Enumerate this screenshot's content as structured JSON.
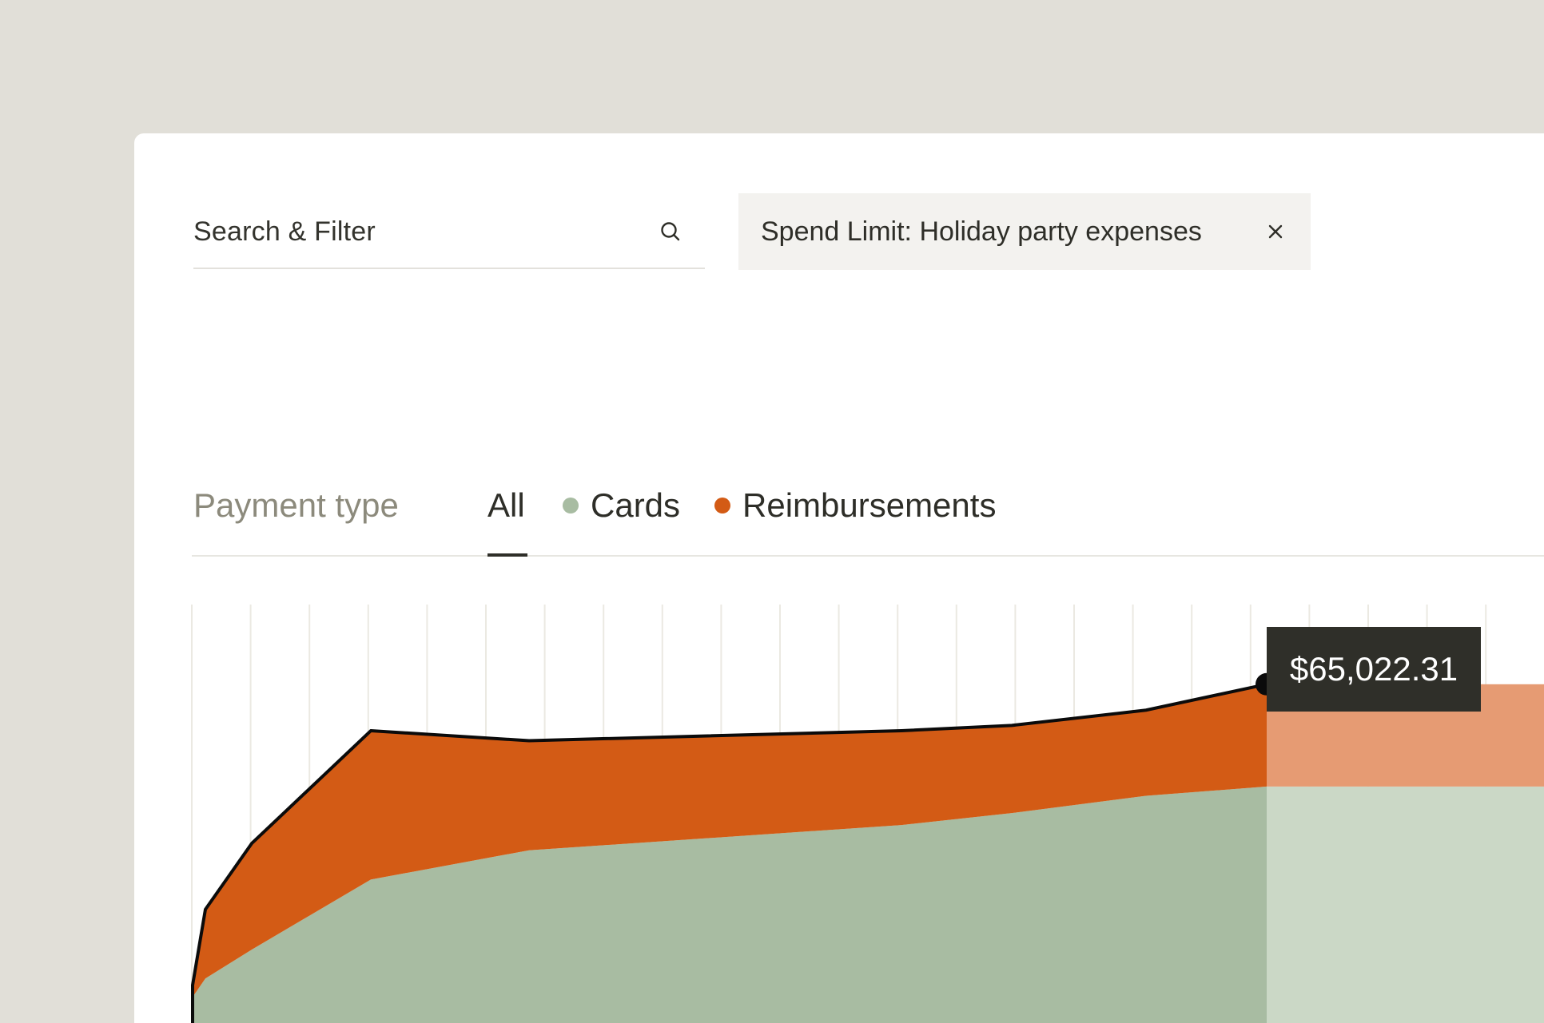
{
  "search": {
    "label": "Search & Filter",
    "icon": "search-icon"
  },
  "filter_chip": {
    "label": "Spend Limit: Holiday party expenses",
    "close_icon": "close-icon"
  },
  "payment_type": {
    "title": "Payment type",
    "tabs": [
      {
        "label": "All",
        "active": true
      },
      {
        "label": "Cards",
        "color": "#a8bca2"
      },
      {
        "label": "Reimbursements",
        "color": "#d35b15"
      }
    ]
  },
  "tooltip": {
    "value": "$65,022.31"
  },
  "colors": {
    "background": "#e1dfd8",
    "cards": "#a8bca2",
    "cards_projected": "#cbd8c6",
    "reimbursements": "#d35b15",
    "reimbursements_projected": "#e69b73",
    "line": "#0b0b0b",
    "tooltip_bg": "#2f2f29"
  },
  "chart_data": {
    "type": "area",
    "stacked": true,
    "x": [
      0,
      1,
      2,
      3,
      4,
      5,
      6,
      7,
      8
    ],
    "series": [
      {
        "name": "Cards",
        "values": [
          0.45,
          1.85,
          4.02,
          9.3,
          11.5,
          13.4,
          14.3,
          15.6,
          16.3
        ]
      },
      {
        "name": "Reimbursements",
        "values": [
          0.9,
          5.2,
          8.0,
          11.2,
          8.25,
          7.1,
          6.6,
          6.45,
          7.7
        ]
      }
    ],
    "highlight": {
      "index": 8,
      "label": "$65,022.31"
    },
    "projection_from_index": 8,
    "grid": true,
    "ylim": [
      -1.5,
      30
    ]
  }
}
